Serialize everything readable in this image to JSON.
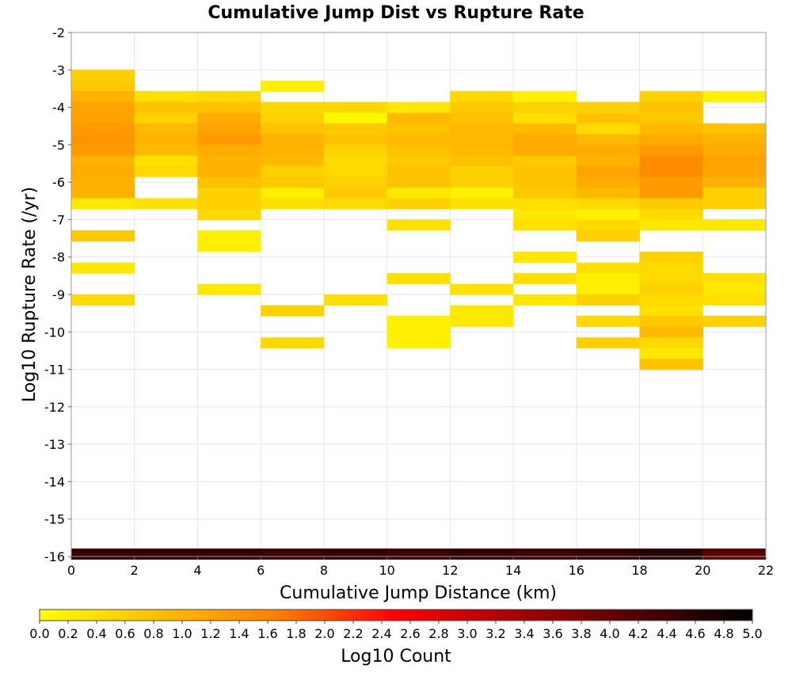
{
  "chart_data": {
    "type": "heatmap",
    "title": "Cumulative Jump Dist vs Rupture Rate",
    "xlabel": "Cumulative Jump Distance (km)",
    "ylabel": "Log10 Rupture Rate (/yr)",
    "xlim": [
      0,
      22
    ],
    "ylim": [
      -16,
      -2
    ],
    "x_ticks": [
      "0",
      "2",
      "4",
      "6",
      "8",
      "10",
      "12",
      "14",
      "16",
      "18",
      "20",
      "22"
    ],
    "y_ticks": [
      "-2",
      "-3",
      "-4",
      "-5",
      "-6",
      "-7",
      "-8",
      "-9",
      "-10",
      "-11",
      "-12",
      "-13",
      "-14",
      "-15",
      "-16"
    ],
    "x_bin_width": 2,
    "y_bin_height": 0.286,
    "grid": true,
    "colorbar": {
      "label": "Log10 Count",
      "min": 0,
      "max": 5,
      "ticks": [
        "0.0",
        "0.2",
        "0.4",
        "0.6",
        "0.8",
        "1.0",
        "1.2",
        "1.4",
        "1.6",
        "1.8",
        "2.0",
        "2.2",
        "2.4",
        "2.6",
        "2.8",
        "3.0",
        "3.2",
        "3.4",
        "3.6",
        "3.8",
        "4.0",
        "4.2",
        "4.4",
        "4.6",
        "4.8",
        "5.0"
      ],
      "colors": [
        "#ffff00",
        "#ff7f00",
        "#ff0000",
        "#000000"
      ],
      "placement": "bottom"
    },
    "cells": [
      {
        "x": 1,
        "y": -3.14,
        "v": 0.6
      },
      {
        "x": 1,
        "y": -3.43,
        "v": 0.7
      },
      {
        "x": 1,
        "y": -3.71,
        "v": 1.0
      },
      {
        "x": 1,
        "y": -4.0,
        "v": 1.2
      },
      {
        "x": 1,
        "y": -4.29,
        "v": 1.2
      },
      {
        "x": 1,
        "y": -4.57,
        "v": 1.3
      },
      {
        "x": 1,
        "y": -4.86,
        "v": 1.4
      },
      {
        "x": 1,
        "y": -5.14,
        "v": 1.3
      },
      {
        "x": 1,
        "y": -5.43,
        "v": 1.0
      },
      {
        "x": 1,
        "y": -5.71,
        "v": 1.1
      },
      {
        "x": 1,
        "y": -6.0,
        "v": 1.0
      },
      {
        "x": 1,
        "y": -6.29,
        "v": 1.0
      },
      {
        "x": 1,
        "y": -6.57,
        "v": 0.3
      },
      {
        "x": 1,
        "y": -7.43,
        "v": 0.7
      },
      {
        "x": 1,
        "y": -8.29,
        "v": 0.3
      },
      {
        "x": 1,
        "y": -9.14,
        "v": 0.5
      },
      {
        "x": 3,
        "y": -3.71,
        "v": 0.4
      },
      {
        "x": 3,
        "y": -4.0,
        "v": 0.8
      },
      {
        "x": 3,
        "y": -4.29,
        "v": 0.6
      },
      {
        "x": 3,
        "y": -4.57,
        "v": 0.9
      },
      {
        "x": 3,
        "y": -4.86,
        "v": 1.0
      },
      {
        "x": 3,
        "y": -5.14,
        "v": 0.9
      },
      {
        "x": 3,
        "y": -5.43,
        "v": 0.4
      },
      {
        "x": 3,
        "y": -5.71,
        "v": 0.5
      },
      {
        "x": 3,
        "y": -6.57,
        "v": 0.4
      },
      {
        "x": 5,
        "y": -3.71,
        "v": 0.5
      },
      {
        "x": 5,
        "y": -4.0,
        "v": 0.8
      },
      {
        "x": 5,
        "y": -4.29,
        "v": 1.1
      },
      {
        "x": 5,
        "y": -4.57,
        "v": 1.2
      },
      {
        "x": 5,
        "y": -4.86,
        "v": 1.3
      },
      {
        "x": 5,
        "y": -5.14,
        "v": 1.1
      },
      {
        "x": 5,
        "y": -5.43,
        "v": 1.0
      },
      {
        "x": 5,
        "y": -5.71,
        "v": 1.0
      },
      {
        "x": 5,
        "y": -6.0,
        "v": 0.8
      },
      {
        "x": 5,
        "y": -6.29,
        "v": 0.6
      },
      {
        "x": 5,
        "y": -6.57,
        "v": 0.6
      },
      {
        "x": 5,
        "y": -6.86,
        "v": 0.5
      },
      {
        "x": 5,
        "y": -7.43,
        "v": 0.2
      },
      {
        "x": 5,
        "y": -7.71,
        "v": 0.2
      },
      {
        "x": 5,
        "y": -8.86,
        "v": 0.3
      },
      {
        "x": 7,
        "y": -3.43,
        "v": 0.2
      },
      {
        "x": 7,
        "y": -4.0,
        "v": 0.5
      },
      {
        "x": 7,
        "y": -4.29,
        "v": 0.6
      },
      {
        "x": 7,
        "y": -4.57,
        "v": 0.8
      },
      {
        "x": 7,
        "y": -4.86,
        "v": 1.0
      },
      {
        "x": 7,
        "y": -5.14,
        "v": 1.0
      },
      {
        "x": 7,
        "y": -5.43,
        "v": 0.9
      },
      {
        "x": 7,
        "y": -5.71,
        "v": 0.6
      },
      {
        "x": 7,
        "y": -6.0,
        "v": 0.7
      },
      {
        "x": 7,
        "y": -6.29,
        "v": 0.2
      },
      {
        "x": 7,
        "y": -6.57,
        "v": 0.4
      },
      {
        "x": 7,
        "y": -9.43,
        "v": 0.6
      },
      {
        "x": 7,
        "y": -10.29,
        "v": 0.5
      },
      {
        "x": 9,
        "y": -4.0,
        "v": 0.5
      },
      {
        "x": 9,
        "y": -4.29,
        "v": 0.1
      },
      {
        "x": 9,
        "y": -4.57,
        "v": 0.7
      },
      {
        "x": 9,
        "y": -4.86,
        "v": 0.8
      },
      {
        "x": 9,
        "y": -5.14,
        "v": 0.6
      },
      {
        "x": 9,
        "y": -5.43,
        "v": 0.5
      },
      {
        "x": 9,
        "y": -5.71,
        "v": 0.5
      },
      {
        "x": 9,
        "y": -6.0,
        "v": 0.6
      },
      {
        "x": 9,
        "y": -6.29,
        "v": 0.7
      },
      {
        "x": 9,
        "y": -6.57,
        "v": 0.5
      },
      {
        "x": 9,
        "y": -9.14,
        "v": 0.4
      },
      {
        "x": 11,
        "y": -4.0,
        "v": 0.3
      },
      {
        "x": 11,
        "y": -4.29,
        "v": 0.9
      },
      {
        "x": 11,
        "y": -4.57,
        "v": 0.8
      },
      {
        "x": 11,
        "y": -4.86,
        "v": 0.9
      },
      {
        "x": 11,
        "y": -5.14,
        "v": 0.8
      },
      {
        "x": 11,
        "y": -5.43,
        "v": 0.7
      },
      {
        "x": 11,
        "y": -5.71,
        "v": 0.8
      },
      {
        "x": 11,
        "y": -6.0,
        "v": 0.8
      },
      {
        "x": 11,
        "y": -6.29,
        "v": 0.3
      },
      {
        "x": 11,
        "y": -6.57,
        "v": 0.6
      },
      {
        "x": 11,
        "y": -7.14,
        "v": 0.4
      },
      {
        "x": 11,
        "y": -8.57,
        "v": 0.4
      },
      {
        "x": 11,
        "y": -9.71,
        "v": 0.2
      },
      {
        "x": 11,
        "y": -10.0,
        "v": 0.2
      },
      {
        "x": 11,
        "y": -10.29,
        "v": 0.2
      },
      {
        "x": 13,
        "y": -3.71,
        "v": 0.5
      },
      {
        "x": 13,
        "y": -4.0,
        "v": 0.7
      },
      {
        "x": 13,
        "y": -4.29,
        "v": 0.8
      },
      {
        "x": 13,
        "y": -4.57,
        "v": 0.9
      },
      {
        "x": 13,
        "y": -4.86,
        "v": 0.9
      },
      {
        "x": 13,
        "y": -5.14,
        "v": 0.9
      },
      {
        "x": 13,
        "y": -5.43,
        "v": 0.8
      },
      {
        "x": 13,
        "y": -5.71,
        "v": 0.6
      },
      {
        "x": 13,
        "y": -6.0,
        "v": 0.6
      },
      {
        "x": 13,
        "y": -6.29,
        "v": 0.2
      },
      {
        "x": 13,
        "y": -6.57,
        "v": 0.4
      },
      {
        "x": 13,
        "y": -8.86,
        "v": 0.4
      },
      {
        "x": 13,
        "y": -9.43,
        "v": 0.3
      },
      {
        "x": 13,
        "y": -9.71,
        "v": 0.3
      },
      {
        "x": 15,
        "y": -3.71,
        "v": 0.2
      },
      {
        "x": 15,
        "y": -4.0,
        "v": 0.6
      },
      {
        "x": 15,
        "y": -4.29,
        "v": 0.4
      },
      {
        "x": 15,
        "y": -4.57,
        "v": 0.9
      },
      {
        "x": 15,
        "y": -4.86,
        "v": 1.1
      },
      {
        "x": 15,
        "y": -5.14,
        "v": 1.1
      },
      {
        "x": 15,
        "y": -5.43,
        "v": 0.7
      },
      {
        "x": 15,
        "y": -5.71,
        "v": 0.8
      },
      {
        "x": 15,
        "y": -6.0,
        "v": 0.8
      },
      {
        "x": 15,
        "y": -6.29,
        "v": 0.7
      },
      {
        "x": 15,
        "y": -6.57,
        "v": 0.4
      },
      {
        "x": 15,
        "y": -6.86,
        "v": 0.3
      },
      {
        "x": 15,
        "y": -7.14,
        "v": 0.4
      },
      {
        "x": 15,
        "y": -8.0,
        "v": 0.3
      },
      {
        "x": 15,
        "y": -8.57,
        "v": 0.4
      },
      {
        "x": 15,
        "y": -9.14,
        "v": 0.3
      },
      {
        "x": 17,
        "y": -4.0,
        "v": 0.6
      },
      {
        "x": 17,
        "y": -4.29,
        "v": 0.8
      },
      {
        "x": 17,
        "y": -4.57,
        "v": 0.5
      },
      {
        "x": 17,
        "y": -4.86,
        "v": 0.9
      },
      {
        "x": 17,
        "y": -5.14,
        "v": 1.1
      },
      {
        "x": 17,
        "y": -5.43,
        "v": 1.0
      },
      {
        "x": 17,
        "y": -5.71,
        "v": 1.2
      },
      {
        "x": 17,
        "y": -6.0,
        "v": 1.1
      },
      {
        "x": 17,
        "y": -6.29,
        "v": 0.9
      },
      {
        "x": 17,
        "y": -6.57,
        "v": 0.5
      },
      {
        "x": 17,
        "y": -6.86,
        "v": 0.2
      },
      {
        "x": 17,
        "y": -7.14,
        "v": 0.5
      },
      {
        "x": 17,
        "y": -7.43,
        "v": 0.6
      },
      {
        "x": 17,
        "y": -8.29,
        "v": 0.4
      },
      {
        "x": 17,
        "y": -8.57,
        "v": 0.2
      },
      {
        "x": 17,
        "y": -8.86,
        "v": 0.2
      },
      {
        "x": 17,
        "y": -9.14,
        "v": 0.6
      },
      {
        "x": 17,
        "y": -9.71,
        "v": 0.5
      },
      {
        "x": 17,
        "y": -10.29,
        "v": 0.6
      },
      {
        "x": 19,
        "y": -3.71,
        "v": 0.6
      },
      {
        "x": 19,
        "y": -4.0,
        "v": 0.8
      },
      {
        "x": 19,
        "y": -4.29,
        "v": 0.7
      },
      {
        "x": 19,
        "y": -4.57,
        "v": 0.9
      },
      {
        "x": 19,
        "y": -4.86,
        "v": 1.1
      },
      {
        "x": 19,
        "y": -5.14,
        "v": 1.3
      },
      {
        "x": 19,
        "y": -5.43,
        "v": 1.5
      },
      {
        "x": 19,
        "y": -5.71,
        "v": 1.5
      },
      {
        "x": 19,
        "y": -6.0,
        "v": 1.3
      },
      {
        "x": 19,
        "y": -6.29,
        "v": 1.3
      },
      {
        "x": 19,
        "y": -6.57,
        "v": 0.7
      },
      {
        "x": 19,
        "y": -6.86,
        "v": 0.5
      },
      {
        "x": 19,
        "y": -7.14,
        "v": 0.3
      },
      {
        "x": 19,
        "y": -8.0,
        "v": 0.6
      },
      {
        "x": 19,
        "y": -8.29,
        "v": 0.5
      },
      {
        "x": 19,
        "y": -8.57,
        "v": 0.5
      },
      {
        "x": 19,
        "y": -8.86,
        "v": 0.6
      },
      {
        "x": 19,
        "y": -9.14,
        "v": 0.5
      },
      {
        "x": 19,
        "y": -9.43,
        "v": 0.4
      },
      {
        "x": 19,
        "y": -9.71,
        "v": 0.7
      },
      {
        "x": 19,
        "y": -10.0,
        "v": 0.9
      },
      {
        "x": 19,
        "y": -10.29,
        "v": 0.5
      },
      {
        "x": 19,
        "y": -10.57,
        "v": 0.3
      },
      {
        "x": 19,
        "y": -10.86,
        "v": 0.8
      },
      {
        "x": 21,
        "y": -3.71,
        "v": 0.2
      },
      {
        "x": 21,
        "y": -4.57,
        "v": 0.8
      },
      {
        "x": 21,
        "y": -4.86,
        "v": 1.0
      },
      {
        "x": 21,
        "y": -5.14,
        "v": 1.1
      },
      {
        "x": 21,
        "y": -5.43,
        "v": 1.2
      },
      {
        "x": 21,
        "y": -5.71,
        "v": 1.2
      },
      {
        "x": 21,
        "y": -6.0,
        "v": 1.0
      },
      {
        "x": 21,
        "y": -6.29,
        "v": 0.6
      },
      {
        "x": 21,
        "y": -6.57,
        "v": 0.6
      },
      {
        "x": 21,
        "y": -7.14,
        "v": 0.3
      },
      {
        "x": 21,
        "y": -8.57,
        "v": 0.4
      },
      {
        "x": 21,
        "y": -8.86,
        "v": 0.3
      },
      {
        "x": 21,
        "y": -9.14,
        "v": 0.4
      },
      {
        "x": 21,
        "y": -9.71,
        "v": 0.6
      },
      {
        "x": 1,
        "y": -15.93,
        "v": 4.5
      },
      {
        "x": 3,
        "y": -15.93,
        "v": 4.5
      },
      {
        "x": 5,
        "y": -15.93,
        "v": 4.5
      },
      {
        "x": 7,
        "y": -15.93,
        "v": 4.4
      },
      {
        "x": 9,
        "y": -15.93,
        "v": 4.5
      },
      {
        "x": 11,
        "y": -15.93,
        "v": 4.4
      },
      {
        "x": 13,
        "y": -15.93,
        "v": 4.5
      },
      {
        "x": 15,
        "y": -15.93,
        "v": 4.4
      },
      {
        "x": 17,
        "y": -15.93,
        "v": 4.5
      },
      {
        "x": 19,
        "y": -15.93,
        "v": 4.6
      },
      {
        "x": 21,
        "y": -15.93,
        "v": 4.1
      }
    ]
  }
}
